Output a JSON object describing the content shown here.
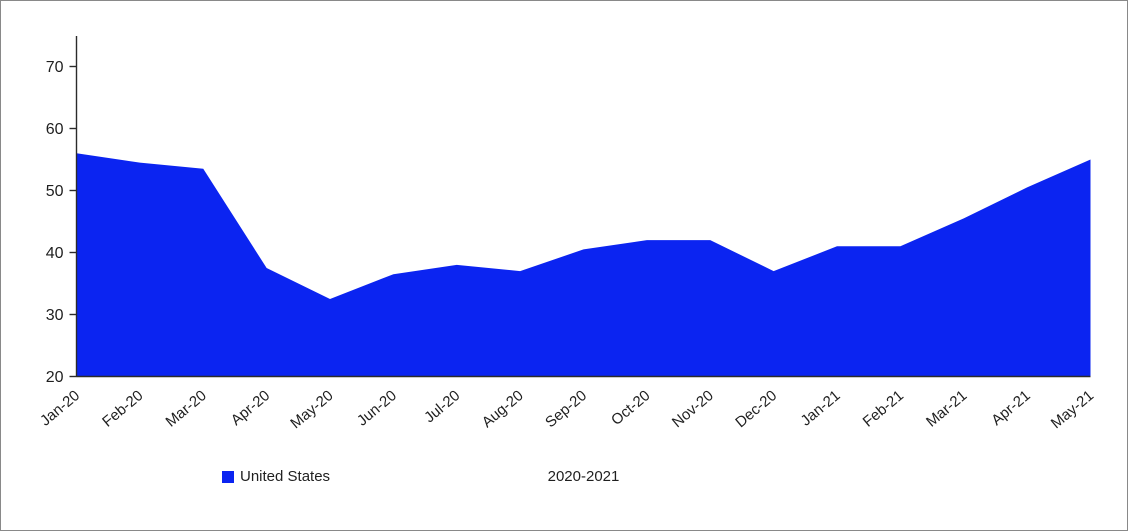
{
  "chart_data": {
    "type": "area",
    "title": "",
    "xlabel": "2020-2021",
    "ylabel": "",
    "categories": [
      "Jan-20",
      "Feb-20",
      "Mar-20",
      "Apr-20",
      "May-20",
      "Jun-20",
      "Jul-20",
      "Aug-20",
      "Sep-20",
      "Oct-20",
      "Nov-20",
      "Dec-20",
      "Jan-21",
      "Feb-21",
      "Mar-21",
      "Apr-21",
      "May-21"
    ],
    "series": [
      {
        "name": "United States",
        "color": "#0b24f1",
        "values": [
          56,
          54.5,
          53.5,
          37.5,
          32.5,
          36.5,
          38,
          37,
          40.5,
          42,
          42,
          37,
          41,
          41,
          45.5,
          50.5,
          55
        ]
      }
    ],
    "ylim": [
      20,
      70
    ],
    "yticks": [
      20,
      30,
      40,
      50,
      60,
      70
    ],
    "grid": false,
    "legend_position": "bottom-left",
    "colors": {
      "axis": "#2b2b2b",
      "tick_text": "#1f1f1f",
      "frame_border": "#898989"
    }
  }
}
